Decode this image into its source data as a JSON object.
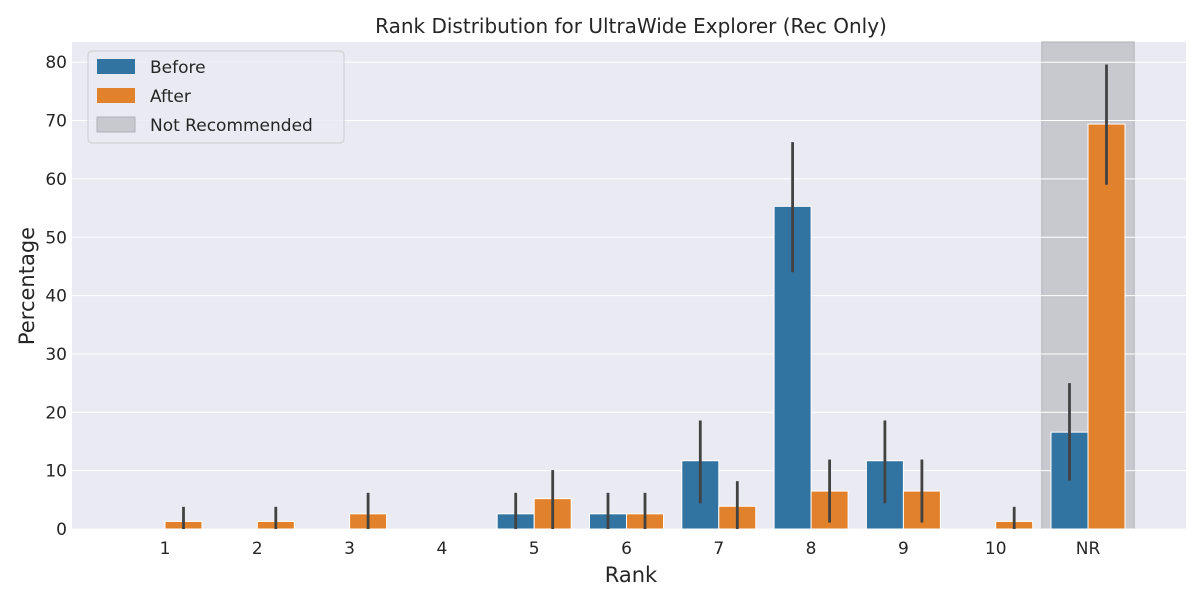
{
  "chart_data": {
    "type": "bar",
    "title": "Rank Distribution for UltraWide Explorer (Rec Only)",
    "xlabel": "Rank",
    "ylabel": "Percentage",
    "categories": [
      "1",
      "2",
      "3",
      "4",
      "5",
      "6",
      "7",
      "8",
      "9",
      "10",
      "NR"
    ],
    "ylim": [
      0,
      83.5
    ],
    "yticks": [
      0,
      10,
      20,
      30,
      40,
      50,
      60,
      70,
      80
    ],
    "grid": true,
    "legend_position": "top-left",
    "highlight": {
      "category": "NR",
      "label": "Not Recommended",
      "color": "#c8c8cf"
    },
    "series": [
      {
        "name": "Before",
        "color": "#3274a1",
        "values": [
          0,
          0,
          0,
          0,
          2.6,
          2.6,
          11.7,
          55.3,
          11.7,
          0,
          16.6
        ],
        "error_low": [
          0,
          0,
          0,
          0,
          0,
          0,
          4.4,
          44.0,
          4.4,
          0,
          8.3
        ],
        "error_high": [
          0,
          0,
          0,
          0,
          6.2,
          6.2,
          18.6,
          66.3,
          18.6,
          0,
          25.0
        ]
      },
      {
        "name": "After",
        "color": "#e1812c",
        "values": [
          1.3,
          1.3,
          2.6,
          0,
          5.2,
          2.6,
          3.9,
          6.5,
          6.5,
          1.3,
          69.4
        ],
        "error_low": [
          0,
          0,
          0,
          0,
          0,
          0,
          0,
          1.1,
          1.1,
          0,
          59.0
        ],
        "error_high": [
          3.8,
          3.8,
          6.2,
          0,
          10.1,
          6.2,
          8.2,
          11.9,
          11.9,
          3.8,
          79.6
        ]
      }
    ]
  },
  "colors": {
    "plot_background": "#eaeaf2",
    "grid": "#ffffff",
    "error_bar": "#424242"
  }
}
